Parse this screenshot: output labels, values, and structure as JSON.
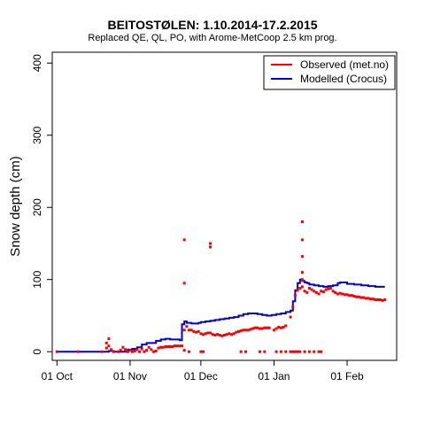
{
  "chart_data": {
    "type": "line",
    "title": "BEITOSTØLEN: 1.10.2014-17.2.2015",
    "subtitle": "Replaced QE, QL, PO,  with Arome-MetCoop 2.5 km prog.",
    "ylabel": "Snow depth (cm)",
    "xlabel": "",
    "xlim": [
      "2014-09-29",
      "2015-02-22"
    ],
    "ylim": [
      -12,
      415
    ],
    "x_ticks": [
      {
        "date": "2014-10-01",
        "label": "01 Oct"
      },
      {
        "date": "2014-11-01",
        "label": "01 Nov"
      },
      {
        "date": "2014-12-01",
        "label": "01 Dec"
      },
      {
        "date": "2015-01-01",
        "label": "01 Jan"
      },
      {
        "date": "2015-02-01",
        "label": "01 Feb"
      }
    ],
    "y_ticks": [
      0,
      100,
      200,
      300,
      400
    ],
    "legend": {
      "position": "top-right"
    },
    "grid": false,
    "series": [
      {
        "name": "Observed (met.no)",
        "color": "#ff0000",
        "marker": "square",
        "points": [
          [
            "2014-10-01",
            0
          ],
          [
            "2014-10-10",
            0
          ],
          [
            "2014-10-20",
            0
          ],
          [
            "2014-10-22",
            5
          ],
          [
            "2014-10-22",
            12
          ],
          [
            "2014-10-23",
            18
          ],
          [
            "2014-10-23",
            8
          ],
          [
            "2014-10-24",
            3
          ],
          [
            "2014-10-25",
            0
          ],
          [
            "2014-10-27",
            0
          ],
          [
            "2014-10-28",
            2
          ],
          [
            "2014-10-29",
            6
          ],
          [
            "2014-10-30",
            3
          ],
          [
            "2014-10-31",
            0
          ],
          [
            "2014-11-01",
            2
          ],
          [
            "2014-11-02",
            0
          ],
          [
            "2014-11-03",
            1
          ],
          [
            "2014-11-04",
            3
          ],
          [
            "2014-11-05",
            0
          ],
          [
            "2014-11-06",
            4
          ],
          [
            "2014-11-07",
            0
          ],
          [
            "2014-11-08",
            2
          ],
          [
            "2014-11-09",
            6
          ],
          [
            "2014-11-10",
            3
          ],
          [
            "2014-11-11",
            0
          ],
          [
            "2014-11-12",
            1
          ],
          [
            "2014-11-13",
            5
          ],
          [
            "2014-11-14",
            6
          ],
          [
            "2014-11-15",
            6
          ],
          [
            "2014-11-16",
            7
          ],
          [
            "2014-11-17",
            7
          ],
          [
            "2014-11-18",
            7
          ],
          [
            "2014-11-19",
            7
          ],
          [
            "2014-11-20",
            8
          ],
          [
            "2014-11-21",
            8
          ],
          [
            "2014-11-22",
            8
          ],
          [
            "2014-11-23",
            8
          ],
          [
            "2014-11-24",
            155
          ],
          [
            "2014-11-24",
            95
          ],
          [
            "2014-11-24",
            30
          ],
          [
            "2014-11-25",
            35
          ],
          [
            "2014-11-26",
            30
          ],
          [
            "2014-11-27",
            30
          ],
          [
            "2014-11-28",
            28
          ],
          [
            "2014-11-29",
            27
          ],
          [
            "2014-11-30",
            28
          ],
          [
            "2014-11-24",
            2
          ],
          [
            "2014-11-26",
            0
          ],
          [
            "2014-12-01",
            0
          ],
          [
            "2014-12-02",
            0
          ],
          [
            "2014-12-01",
            25
          ],
          [
            "2014-12-02",
            24
          ],
          [
            "2014-12-03",
            25
          ],
          [
            "2014-12-04",
            26
          ],
          [
            "2014-12-05",
            150
          ],
          [
            "2014-12-05",
            145
          ],
          [
            "2014-12-05",
            26
          ],
          [
            "2014-12-06",
            24
          ],
          [
            "2014-12-07",
            23
          ],
          [
            "2014-12-08",
            24
          ],
          [
            "2014-12-09",
            23
          ],
          [
            "2014-12-10",
            22
          ],
          [
            "2014-12-11",
            23
          ],
          [
            "2014-12-12",
            24
          ],
          [
            "2014-12-13",
            25
          ],
          [
            "2014-12-14",
            24
          ],
          [
            "2014-12-15",
            25
          ],
          [
            "2014-12-16",
            27
          ],
          [
            "2014-12-17",
            28
          ],
          [
            "2014-12-18",
            29
          ],
          [
            "2014-12-19",
            30
          ],
          [
            "2014-12-20",
            30
          ],
          [
            "2014-12-21",
            30
          ],
          [
            "2014-12-22",
            31
          ],
          [
            "2014-12-23",
            32
          ],
          [
            "2014-12-24",
            33
          ],
          [
            "2014-12-25",
            33
          ],
          [
            "2014-12-26",
            32
          ],
          [
            "2014-12-27",
            32
          ],
          [
            "2014-12-28",
            33
          ],
          [
            "2014-12-29",
            33
          ],
          [
            "2014-12-30",
            33
          ],
          [
            "2014-12-18",
            0
          ],
          [
            "2014-12-20",
            0
          ],
          [
            "2014-12-26",
            0
          ],
          [
            "2014-12-28",
            0
          ],
          [
            "2015-01-01",
            30
          ],
          [
            "2015-01-02",
            32
          ],
          [
            "2015-01-03",
            34
          ],
          [
            "2015-01-04",
            33
          ],
          [
            "2015-01-05",
            34
          ],
          [
            "2015-01-06",
            36
          ],
          [
            "2015-01-02",
            0
          ],
          [
            "2015-01-04",
            0
          ],
          [
            "2015-01-06",
            0
          ],
          [
            "2015-01-08",
            0
          ],
          [
            "2015-01-09",
            0
          ],
          [
            "2015-01-10",
            0
          ],
          [
            "2015-01-11",
            0
          ],
          [
            "2015-01-12",
            0
          ],
          [
            "2015-01-14",
            0
          ],
          [
            "2015-01-16",
            0
          ],
          [
            "2015-01-18",
            0
          ],
          [
            "2015-01-20",
            0
          ],
          [
            "2015-01-21",
            0
          ],
          [
            "2015-01-08",
            48
          ],
          [
            "2015-01-09",
            62
          ],
          [
            "2015-01-10",
            78
          ],
          [
            "2015-01-11",
            85
          ],
          [
            "2015-01-12",
            88
          ],
          [
            "2015-01-13",
            90
          ],
          [
            "2015-01-13",
            180
          ],
          [
            "2015-01-13",
            155
          ],
          [
            "2015-01-13",
            132
          ],
          [
            "2015-01-13",
            110
          ],
          [
            "2015-01-13",
            100
          ],
          [
            "2015-01-14",
            84
          ],
          [
            "2015-01-15",
            82
          ],
          [
            "2015-01-16",
            88
          ],
          [
            "2015-01-17",
            86
          ],
          [
            "2015-01-18",
            84
          ],
          [
            "2015-01-19",
            82
          ],
          [
            "2015-01-20",
            80
          ],
          [
            "2015-01-21",
            84
          ],
          [
            "2015-01-22",
            83
          ],
          [
            "2015-01-23",
            86
          ],
          [
            "2015-01-24",
            87
          ],
          [
            "2015-01-25",
            88
          ],
          [
            "2015-01-26",
            84
          ],
          [
            "2015-01-27",
            82
          ],
          [
            "2015-01-28",
            80
          ],
          [
            "2015-01-29",
            81
          ],
          [
            "2015-01-30",
            80
          ],
          [
            "2015-01-31",
            79
          ],
          [
            "2015-02-01",
            79
          ],
          [
            "2015-02-02",
            78
          ],
          [
            "2015-02-03",
            78
          ],
          [
            "2015-02-04",
            77
          ],
          [
            "2015-02-05",
            76
          ],
          [
            "2015-02-06",
            76
          ],
          [
            "2015-02-07",
            75
          ],
          [
            "2015-02-08",
            75
          ],
          [
            "2015-02-09",
            74
          ],
          [
            "2015-02-10",
            74
          ],
          [
            "2015-02-11",
            73
          ],
          [
            "2015-02-12",
            73
          ],
          [
            "2015-02-13",
            72
          ],
          [
            "2015-02-14",
            72
          ],
          [
            "2015-02-15",
            72
          ],
          [
            "2015-02-16",
            71
          ],
          [
            "2015-02-17",
            72
          ]
        ]
      },
      {
        "name": "Modelled (Crocus)",
        "color": "#0000cc",
        "line": [
          [
            "2014-10-01",
            0
          ],
          [
            "2014-10-22",
            0
          ],
          [
            "2014-10-23",
            1
          ],
          [
            "2014-10-24",
            1
          ],
          [
            "2014-10-25",
            0
          ],
          [
            "2014-10-30",
            0
          ],
          [
            "2014-10-31",
            3
          ],
          [
            "2014-11-02",
            4
          ],
          [
            "2014-11-04",
            6
          ],
          [
            "2014-11-06",
            10
          ],
          [
            "2014-11-08",
            12
          ],
          [
            "2014-11-10",
            12
          ],
          [
            "2014-11-12",
            15
          ],
          [
            "2014-11-14",
            17
          ],
          [
            "2014-11-16",
            18
          ],
          [
            "2014-11-18",
            17
          ],
          [
            "2014-11-20",
            17
          ],
          [
            "2014-11-22",
            16
          ],
          [
            "2014-11-23",
            16
          ],
          [
            "2014-11-23",
            38
          ],
          [
            "2014-11-24",
            42
          ],
          [
            "2014-11-25",
            40
          ],
          [
            "2014-11-27",
            39
          ],
          [
            "2014-11-30",
            40
          ],
          [
            "2014-12-01",
            41
          ],
          [
            "2014-12-03",
            42
          ],
          [
            "2014-12-05",
            43
          ],
          [
            "2014-12-07",
            44
          ],
          [
            "2014-12-09",
            45
          ],
          [
            "2014-12-11",
            46
          ],
          [
            "2014-12-13",
            47
          ],
          [
            "2014-12-15",
            48
          ],
          [
            "2014-12-17",
            50
          ],
          [
            "2014-12-19",
            52
          ],
          [
            "2014-12-21",
            53
          ],
          [
            "2014-12-23",
            53
          ],
          [
            "2014-12-25",
            52
          ],
          [
            "2014-12-27",
            51
          ],
          [
            "2014-12-29",
            50
          ],
          [
            "2014-12-31",
            51
          ],
          [
            "2015-01-02",
            52
          ],
          [
            "2015-01-04",
            53
          ],
          [
            "2015-01-06",
            55
          ],
          [
            "2015-01-08",
            57
          ],
          [
            "2015-01-09",
            58
          ],
          [
            "2015-01-09",
            70
          ],
          [
            "2015-01-10",
            85
          ],
          [
            "2015-01-11",
            95
          ],
          [
            "2015-01-12",
            100
          ],
          [
            "2015-01-13",
            98
          ],
          [
            "2015-01-14",
            96
          ],
          [
            "2015-01-15",
            95
          ],
          [
            "2015-01-16",
            93
          ],
          [
            "2015-01-18",
            92
          ],
          [
            "2015-01-20",
            91
          ],
          [
            "2015-01-22",
            90
          ],
          [
            "2015-01-24",
            91
          ],
          [
            "2015-01-26",
            92
          ],
          [
            "2015-01-28",
            95
          ],
          [
            "2015-01-29",
            96
          ],
          [
            "2015-02-01",
            94
          ],
          [
            "2015-02-04",
            93
          ],
          [
            "2015-02-07",
            92
          ],
          [
            "2015-02-10",
            91
          ],
          [
            "2015-02-13",
            90
          ],
          [
            "2015-02-17",
            90
          ]
        ]
      }
    ]
  }
}
